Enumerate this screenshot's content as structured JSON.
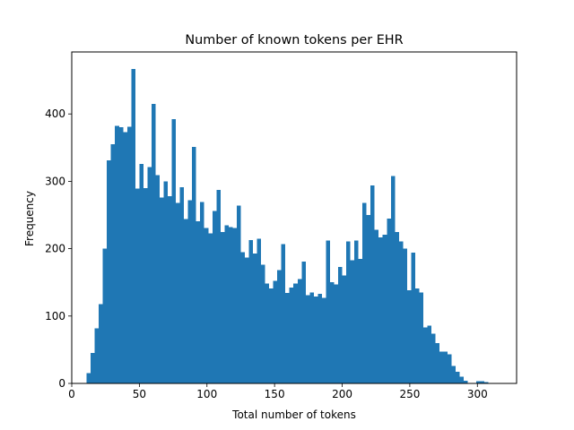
{
  "chart_data": {
    "type": "bar",
    "title": "Number of known tokens per EHR",
    "xlabel": "Total number of tokens",
    "ylabel": "Frequency",
    "xlim": [
      0,
      329
    ],
    "ylim": [
      0,
      492
    ],
    "xticks": [
      0,
      50,
      100,
      150,
      200,
      250,
      300
    ],
    "yticks": [
      0,
      100,
      200,
      300,
      400
    ],
    "bin_start": 11,
    "bin_width": 3,
    "values": [
      15,
      45,
      82,
      118,
      200,
      331,
      355,
      382,
      380,
      373,
      381,
      467,
      289,
      326,
      290,
      321,
      415,
      309,
      276,
      300,
      278,
      392,
      268,
      291,
      244,
      272,
      351,
      241,
      269,
      231,
      223,
      256,
      287,
      225,
      235,
      232,
      231,
      264,
      195,
      187,
      213,
      193,
      215,
      176,
      148,
      141,
      152,
      168,
      207,
      134,
      142,
      148,
      155,
      181,
      131,
      135,
      129,
      133,
      127,
      212,
      150,
      147,
      173,
      160,
      211,
      183,
      212,
      185,
      268,
      250,
      294,
      228,
      217,
      221,
      245,
      308,
      225,
      211,
      200,
      138,
      194,
      141,
      135,
      83,
      86,
      74,
      60,
      47,
      47,
      43,
      26,
      17,
      10,
      4,
      0,
      0,
      3,
      3,
      2
    ],
    "bar_color": "#1f77b4",
    "grid": false
  }
}
